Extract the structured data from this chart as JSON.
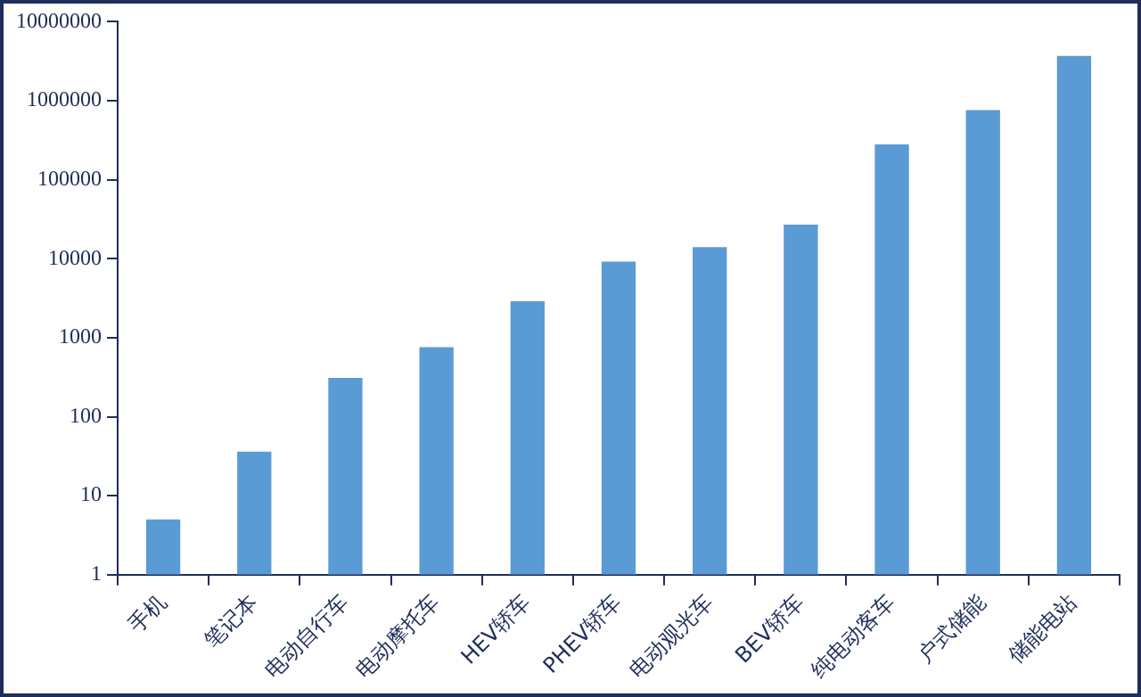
{
  "chart_data": {
    "type": "bar",
    "categories": [
      "手机",
      "笔记本",
      "电动自行车",
      "电动摩托车",
      "HEV轿车",
      "PHEV轿车",
      "电动观光车",
      "BEV轿车",
      "纯电动客车",
      "户式储能",
      "储能电站"
    ],
    "values": [
      5,
      36,
      310,
      760,
      2900,
      9200,
      14000,
      27000,
      280000,
      760000,
      3700000
    ],
    "color": "#5b9bd5",
    "log": true,
    "ylim": [
      1,
      10000000
    ],
    "yticks": [
      1,
      10,
      100,
      1000,
      10000,
      100000,
      1000000,
      10000000
    ],
    "grid": false,
    "legend": false
  }
}
